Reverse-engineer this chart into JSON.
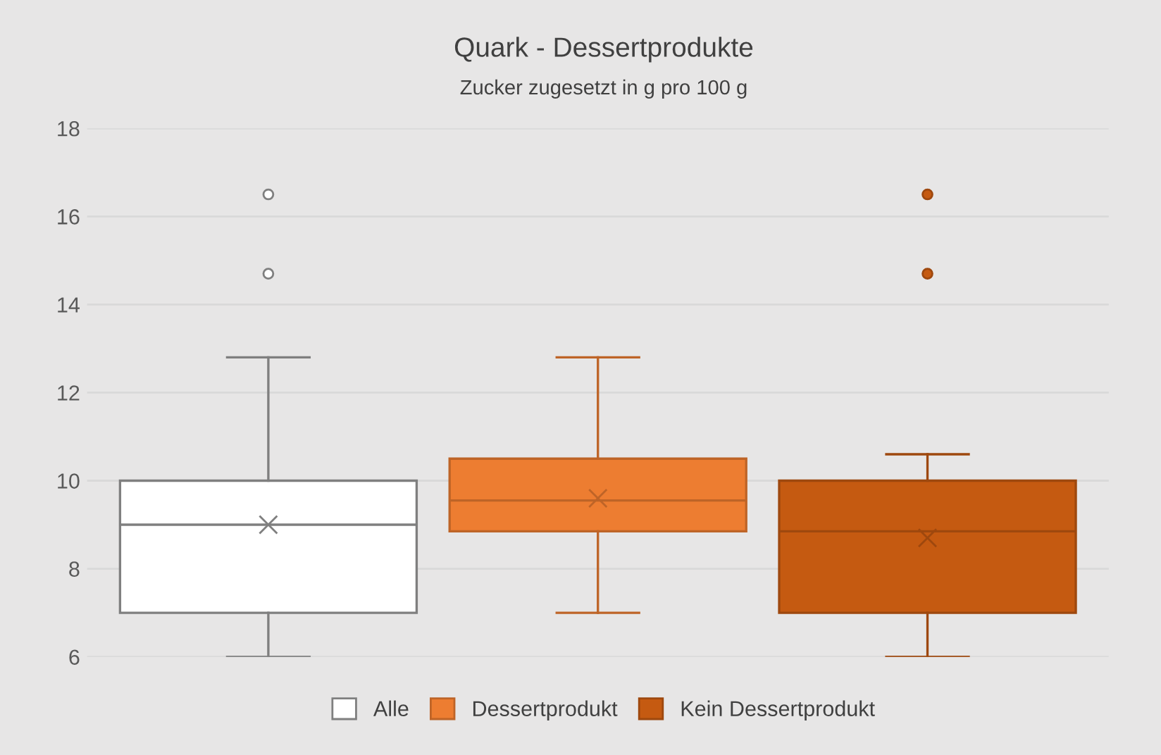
{
  "chart_data": {
    "type": "box",
    "title": "Quark - Dessertprodukte",
    "subtitle": "Zucker zugesetzt in g pro 100 g",
    "categories": [
      null,
      null,
      null
    ],
    "ylim": [
      6,
      18
    ],
    "yticks": [
      6,
      8,
      10,
      12,
      14,
      16,
      18
    ],
    "grid": "y",
    "legend": "bottom",
    "tick_labels": "y",
    "series": [
      {
        "name": "Alle",
        "color": "#ffffff",
        "boxes": [
          {
            "low": 6,
            "q1": 7,
            "median": 9,
            "q3": 10,
            "high": 12.8,
            "mean": 9.0,
            "outliers": [
              16.5,
              14.7
            ]
          },
          null,
          null
        ]
      },
      {
        "name": "Dessertprodukt",
        "color": "#ed7d31",
        "boxes": [
          null,
          {
            "low": 7,
            "q1": 8.85,
            "median": 9.55,
            "q3": 10.5,
            "high": 12.8,
            "mean": 9.6
          },
          null
        ]
      },
      {
        "name": "Kein Dessertprodukt",
        "color": "#c55a11",
        "boxes": [
          null,
          null,
          {
            "low": 6,
            "q1": 7,
            "median": 8.85,
            "q3": 10,
            "high": 10.6,
            "mean": 8.7,
            "outliers": [
              16.5,
              14.7
            ]
          }
        ]
      }
    ]
  }
}
